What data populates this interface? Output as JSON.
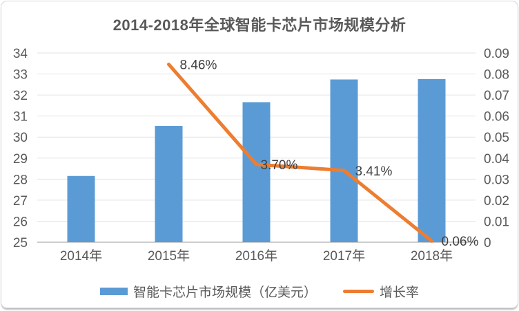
{
  "chart_data": {
    "type": "combo-bar-line",
    "title": "2014-2018年全球智能卡芯片市场规模分析",
    "categories": [
      "2014年",
      "2015年",
      "2016年",
      "2017年",
      "2018年"
    ],
    "series": [
      {
        "name": "智能卡芯片市场规模（亿美元）",
        "type": "bar",
        "axis": "left",
        "values": [
          28.15,
          30.53,
          31.66,
          32.74,
          32.76
        ],
        "color": "#5B9BD5"
      },
      {
        "name": "增长率",
        "type": "line",
        "axis": "right",
        "values": [
          null,
          0.0846,
          0.037,
          0.0341,
          0.0006
        ],
        "point_labels": [
          "",
          "8.46%",
          "3.70%",
          "3.41%",
          "0.06%"
        ],
        "color": "#ED7D31"
      }
    ],
    "left_axis": {
      "min": 25,
      "max": 34,
      "step": 1,
      "ticks": [
        "25",
        "26",
        "27",
        "28",
        "29",
        "30",
        "31",
        "32",
        "33",
        "34"
      ]
    },
    "right_axis": {
      "min": 0,
      "max": 0.09,
      "step": 0.01,
      "ticks": [
        "0",
        "0.01",
        "0.02",
        "0.03",
        "0.04",
        "0.05",
        "0.06",
        "0.07",
        "0.08",
        "0.09"
      ]
    },
    "grid": true,
    "legend_position": "bottom",
    "colors": {
      "bar": "#5B9BD5",
      "line": "#ED7D31",
      "gridline": "#e3e3e3",
      "axis_line": "#cccccc",
      "tick_label": "#595959",
      "data_label": "#404040",
      "title": "#595959"
    }
  }
}
